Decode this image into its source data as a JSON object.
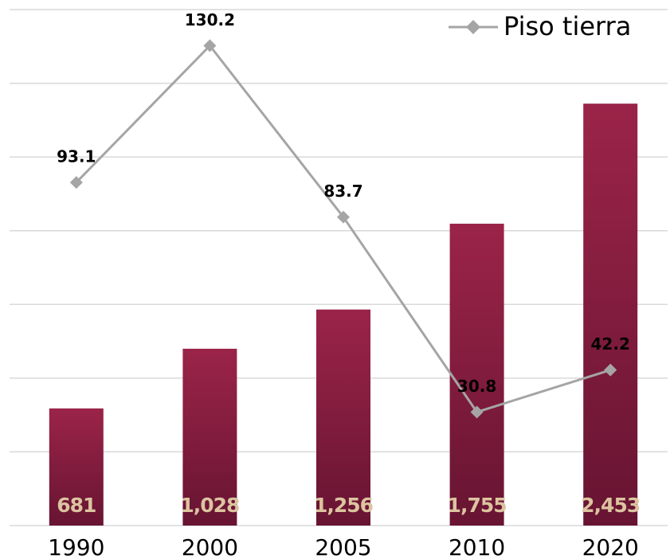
{
  "chart_data": {
    "type": "bar-line",
    "categories": [
      "1990",
      "2000",
      "2005",
      "2010",
      "2020"
    ],
    "series": [
      {
        "name": null,
        "type": "bar",
        "color": "#8a1e42",
        "values": [
          681,
          1028,
          1256,
          1755,
          2453
        ],
        "value_labels": [
          "681",
          "1,028",
          "1,256",
          "1,755",
          "2,453"
        ]
      },
      {
        "name": "Piso tierra",
        "type": "line",
        "axis": "y2",
        "color": "#a5a5a5",
        "values": [
          93.1,
          130.2,
          83.7,
          30.8,
          42.2
        ]
      }
    ],
    "ylim": [
      0,
      3000
    ],
    "y2lim": [
      0,
      140
    ],
    "y2ticks": [
      0,
      20,
      40,
      60,
      80,
      100,
      120,
      140
    ],
    "grid": true,
    "legend": "top-right"
  }
}
